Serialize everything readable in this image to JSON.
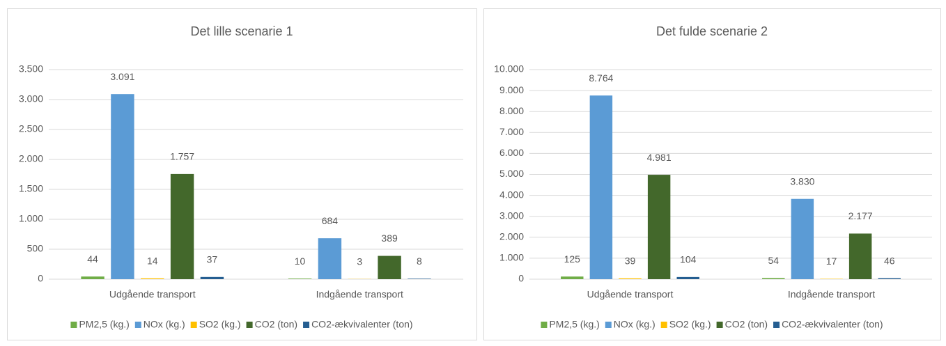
{
  "chart_data": [
    {
      "type": "bar",
      "title": "Det lille scenarie 1",
      "categories": [
        "Udgående transport",
        "Indgående transport"
      ],
      "series": [
        {
          "name": "PM2,5 (kg.)",
          "color": "#70ad47",
          "values": [
            44,
            10
          ]
        },
        {
          "name": "NOx (kg.)",
          "color": "#5b9bd5",
          "values": [
            3091,
            684
          ],
          "value_labels": [
            "3.091",
            "684"
          ]
        },
        {
          "name": "SO2 (kg.)",
          "color": "#ffc000",
          "values": [
            14,
            3
          ]
        },
        {
          "name": "CO2 (ton)",
          "color": "#43682b",
          "values": [
            1757,
            389
          ],
          "value_labels": [
            "1.757",
            "389"
          ]
        },
        {
          "name": "CO2-ækvivalenter (ton)",
          "color": "#255e91",
          "values": [
            37,
            8
          ]
        }
      ],
      "ylim": [
        0,
        3500
      ],
      "yticks": [
        0,
        500,
        {
          "value": 1000,
          "label": "1.000"
        },
        {
          "value": 1500,
          "label": "1.500"
        },
        {
          "value": 2000,
          "label": "2.000"
        },
        {
          "value": 2500,
          "label": "2.500"
        },
        {
          "value": 3000,
          "label": "3.000"
        },
        {
          "value": 3500,
          "label": "3.500"
        }
      ],
      "grid": true,
      "legend": "bottom"
    },
    {
      "type": "bar",
      "title": "Det fulde scenarie 2",
      "categories": [
        "Udgående transport",
        "Indgående transport"
      ],
      "series": [
        {
          "name": "PM2,5 (kg.)",
          "color": "#70ad47",
          "values": [
            125,
            54
          ]
        },
        {
          "name": "NOx (kg.)",
          "color": "#5b9bd5",
          "values": [
            8764,
            3830
          ],
          "value_labels": [
            "8.764",
            "3.830"
          ]
        },
        {
          "name": "SO2 (kg.)",
          "color": "#ffc000",
          "values": [
            39,
            17
          ]
        },
        {
          "name": "CO2 (ton)",
          "color": "#43682b",
          "values": [
            4981,
            2177
          ],
          "value_labels": [
            "4.981",
            "2.177"
          ]
        },
        {
          "name": "CO2-ækvivalenter (ton)",
          "color": "#255e91",
          "values": [
            104,
            46
          ]
        }
      ],
      "ylim": [
        0,
        10000
      ],
      "yticks": [
        0,
        {
          "value": 1000,
          "label": "1.000"
        },
        {
          "value": 2000,
          "label": "2.000"
        },
        {
          "value": 3000,
          "label": "3.000"
        },
        {
          "value": 4000,
          "label": "4.000"
        },
        {
          "value": 5000,
          "label": "5.000"
        },
        {
          "value": 6000,
          "label": "6.000"
        },
        {
          "value": 7000,
          "label": "7.000"
        },
        {
          "value": 8000,
          "label": "8.000"
        },
        {
          "value": 9000,
          "label": "9.000"
        },
        {
          "value": 10000,
          "label": "10.000"
        }
      ],
      "grid": true,
      "legend": "bottom"
    }
  ]
}
